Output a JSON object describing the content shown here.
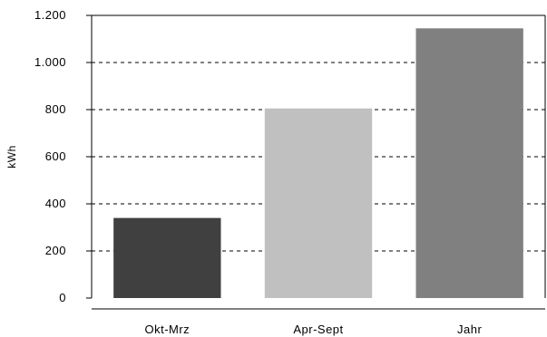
{
  "chart_data": {
    "type": "bar",
    "categories": [
      "Okt-Mrz",
      "Apr-Sept",
      "Jahr"
    ],
    "values": [
      340,
      805,
      1145
    ],
    "bar_colors": [
      "#404040",
      "#c0c0c0",
      "#808080"
    ],
    "ylabel": "kWh",
    "ylim": [
      0,
      1200
    ],
    "yticks": [
      0,
      200,
      400,
      600,
      800,
      1000,
      1200
    ],
    "ytick_labels": [
      "0",
      "200",
      "400",
      "600",
      "800",
      "1.000",
      "1.200"
    ],
    "grid": "horizontal-dashed",
    "legend": "none"
  }
}
